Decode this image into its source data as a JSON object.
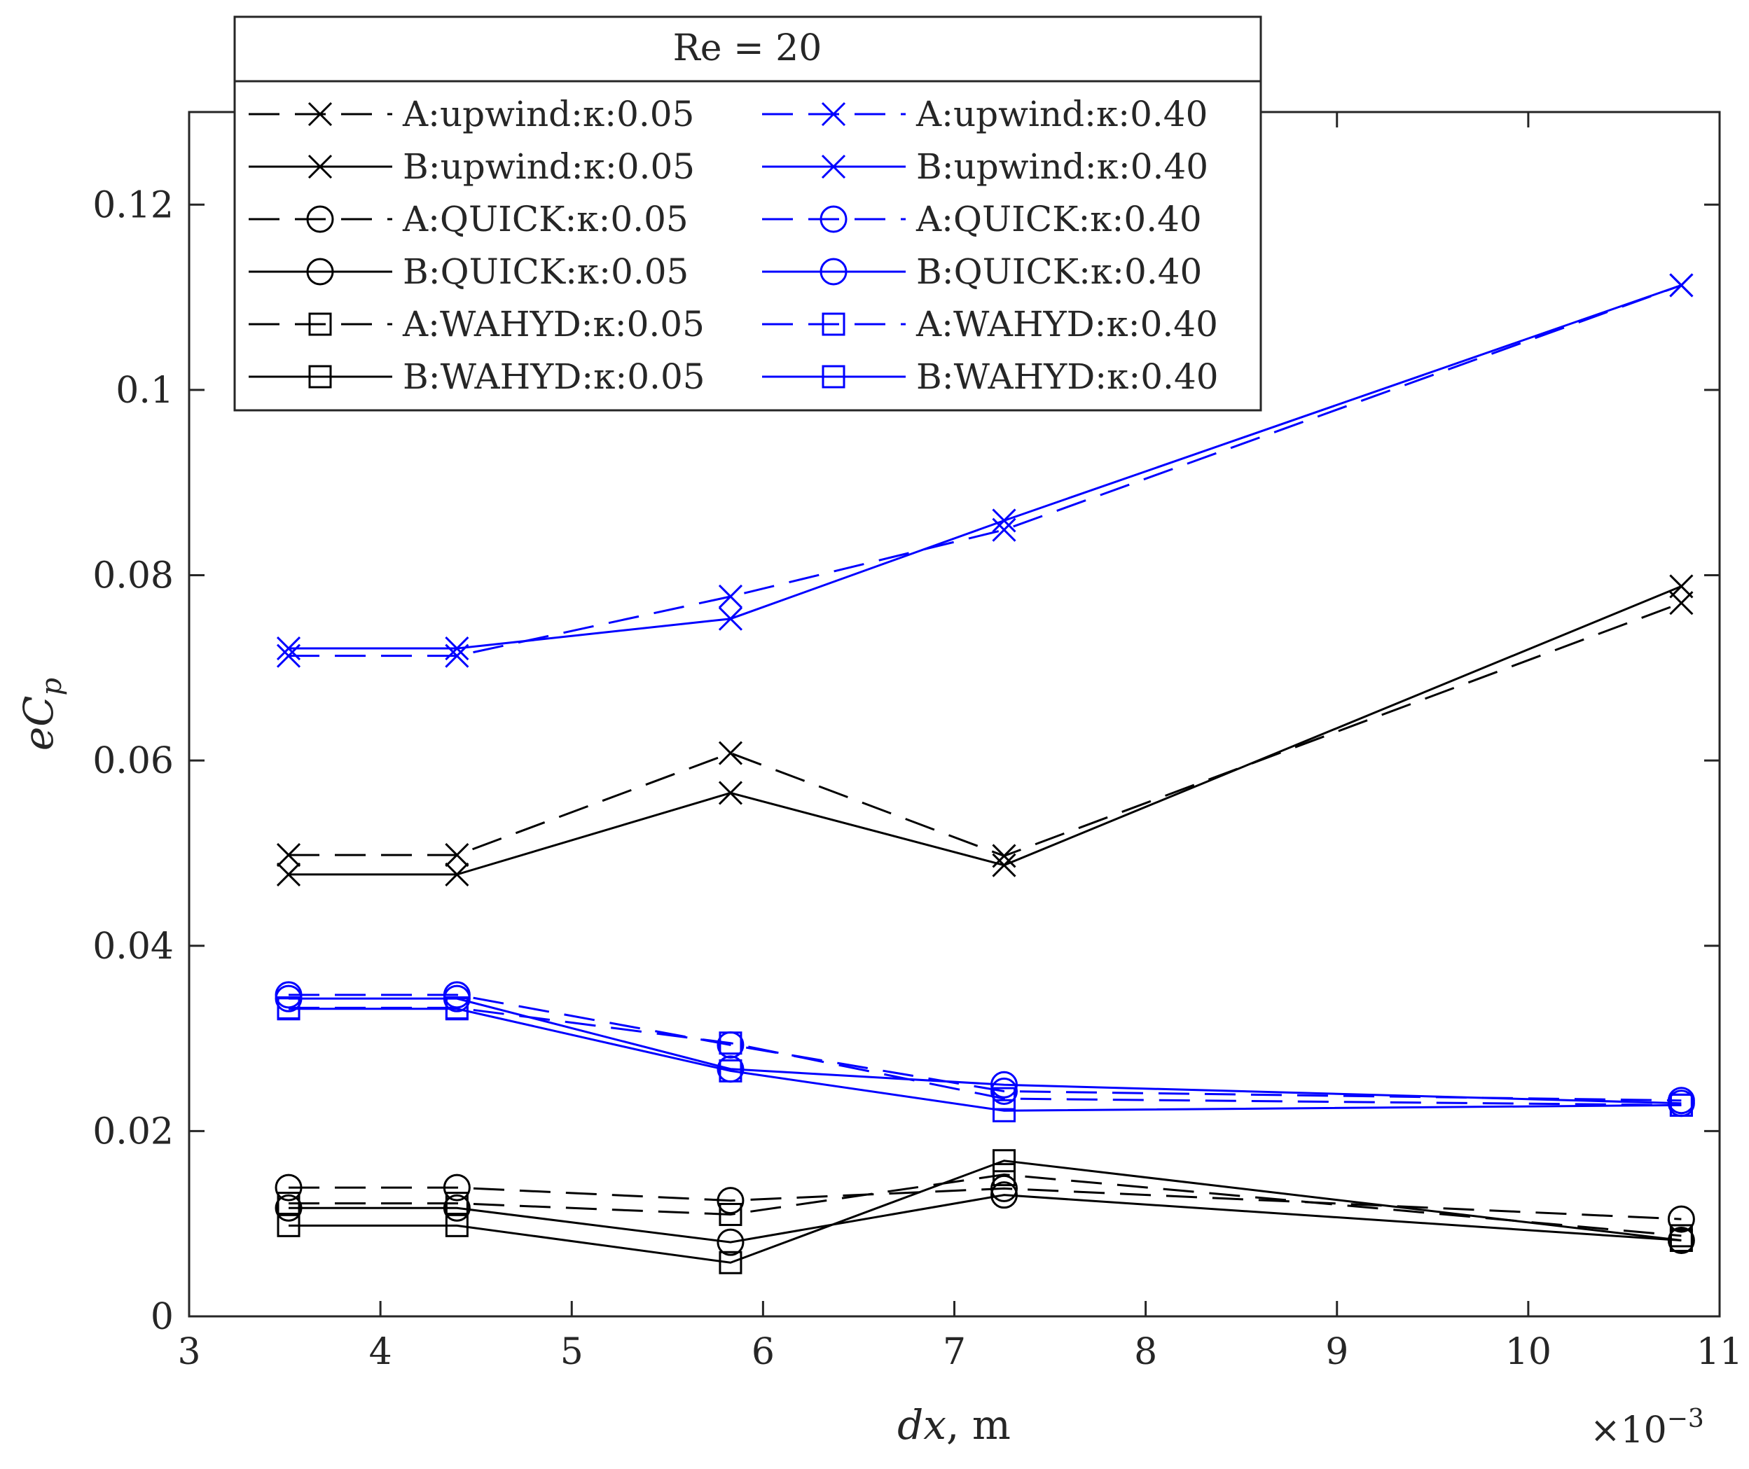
{
  "chart_data": {
    "type": "line",
    "title": "",
    "legend_title": "Re = 20",
    "legend_location": "top-center",
    "xlabel": "dx, m",
    "ylabel": "eC_p",
    "xlabel_display": "dx",
    "xlabel_unit": ", m",
    "ylabel_display_base": "eC",
    "ylabel_display_sub": "p",
    "x_exponent_label": "×10",
    "x_exponent_power": "−3",
    "xlim": [
      3,
      11
    ],
    "ylim": [
      0,
      0.13
    ],
    "xticks": [
      3,
      4,
      5,
      6,
      7,
      8,
      9,
      10,
      11
    ],
    "yticks": [
      0,
      0.02,
      0.04,
      0.06,
      0.08,
      0.1,
      0.12
    ],
    "xtick_labels": [
      "3",
      "4",
      "5",
      "6",
      "7",
      "8",
      "9",
      "10",
      "11"
    ],
    "ytick_labels": [
      "0",
      "0.02",
      "0.04",
      "0.06",
      "0.08",
      "0.1",
      "0.12"
    ],
    "grid": false,
    "colors": {
      "black": "#000000",
      "blue": "#0000ff",
      "axis": "#262626"
    },
    "x": [
      3.52,
      4.4,
      5.83,
      7.26,
      10.8
    ],
    "series": [
      {
        "name": "A:upwind:κ:0.05",
        "color": "black",
        "dash": true,
        "marker": "x",
        "values": [
          0.0498,
          0.0498,
          0.0608,
          0.0497,
          0.077
        ]
      },
      {
        "name": "B:upwind:κ:0.05",
        "color": "black",
        "dash": false,
        "marker": "x",
        "values": [
          0.0477,
          0.0477,
          0.0565,
          0.0487,
          0.0788
        ]
      },
      {
        "name": "A:QUICK:κ:0.05",
        "color": "black",
        "dash": true,
        "marker": "o",
        "values": [
          0.0139,
          0.0139,
          0.0125,
          0.0138,
          0.0105
        ]
      },
      {
        "name": "B:QUICK:κ:0.05",
        "color": "black",
        "dash": false,
        "marker": "o",
        "values": [
          0.0117,
          0.0117,
          0.008,
          0.0131,
          0.0082
        ]
      },
      {
        "name": "A:WAHYD:κ:0.05",
        "color": "black",
        "dash": true,
        "marker": "s",
        "values": [
          0.0122,
          0.0122,
          0.011,
          0.0153,
          0.0087
        ]
      },
      {
        "name": "B:WAHYD:κ:0.05",
        "color": "black",
        "dash": false,
        "marker": "s",
        "values": [
          0.0098,
          0.0098,
          0.0058,
          0.0168,
          0.0082
        ]
      },
      {
        "name": "A:upwind:κ:0.40",
        "color": "blue",
        "dash": true,
        "marker": "x",
        "values": [
          0.0713,
          0.0713,
          0.0777,
          0.0849,
          0.1113
        ]
      },
      {
        "name": "B:upwind:κ:0.40",
        "color": "blue",
        "dash": false,
        "marker": "x",
        "values": [
          0.0721,
          0.0721,
          0.0753,
          0.0859,
          0.1113
        ]
      },
      {
        "name": "A:QUICK:κ:0.40",
        "color": "blue",
        "dash": true,
        "marker": "o",
        "values": [
          0.0347,
          0.0347,
          0.0293,
          0.0243,
          0.0233
        ]
      },
      {
        "name": "B:QUICK:κ:0.40",
        "color": "blue",
        "dash": false,
        "marker": "o",
        "values": [
          0.0343,
          0.0343,
          0.0267,
          0.025,
          0.023
        ]
      },
      {
        "name": "A:WAHYD:κ:0.40",
        "color": "blue",
        "dash": true,
        "marker": "s",
        "values": [
          0.0333,
          0.0333,
          0.0295,
          0.0235,
          0.0228
        ]
      },
      {
        "name": "B:WAHYD:κ:0.40",
        "color": "blue",
        "dash": false,
        "marker": "s",
        "values": [
          0.0332,
          0.0332,
          0.0265,
          0.0222,
          0.0228
        ]
      }
    ]
  }
}
